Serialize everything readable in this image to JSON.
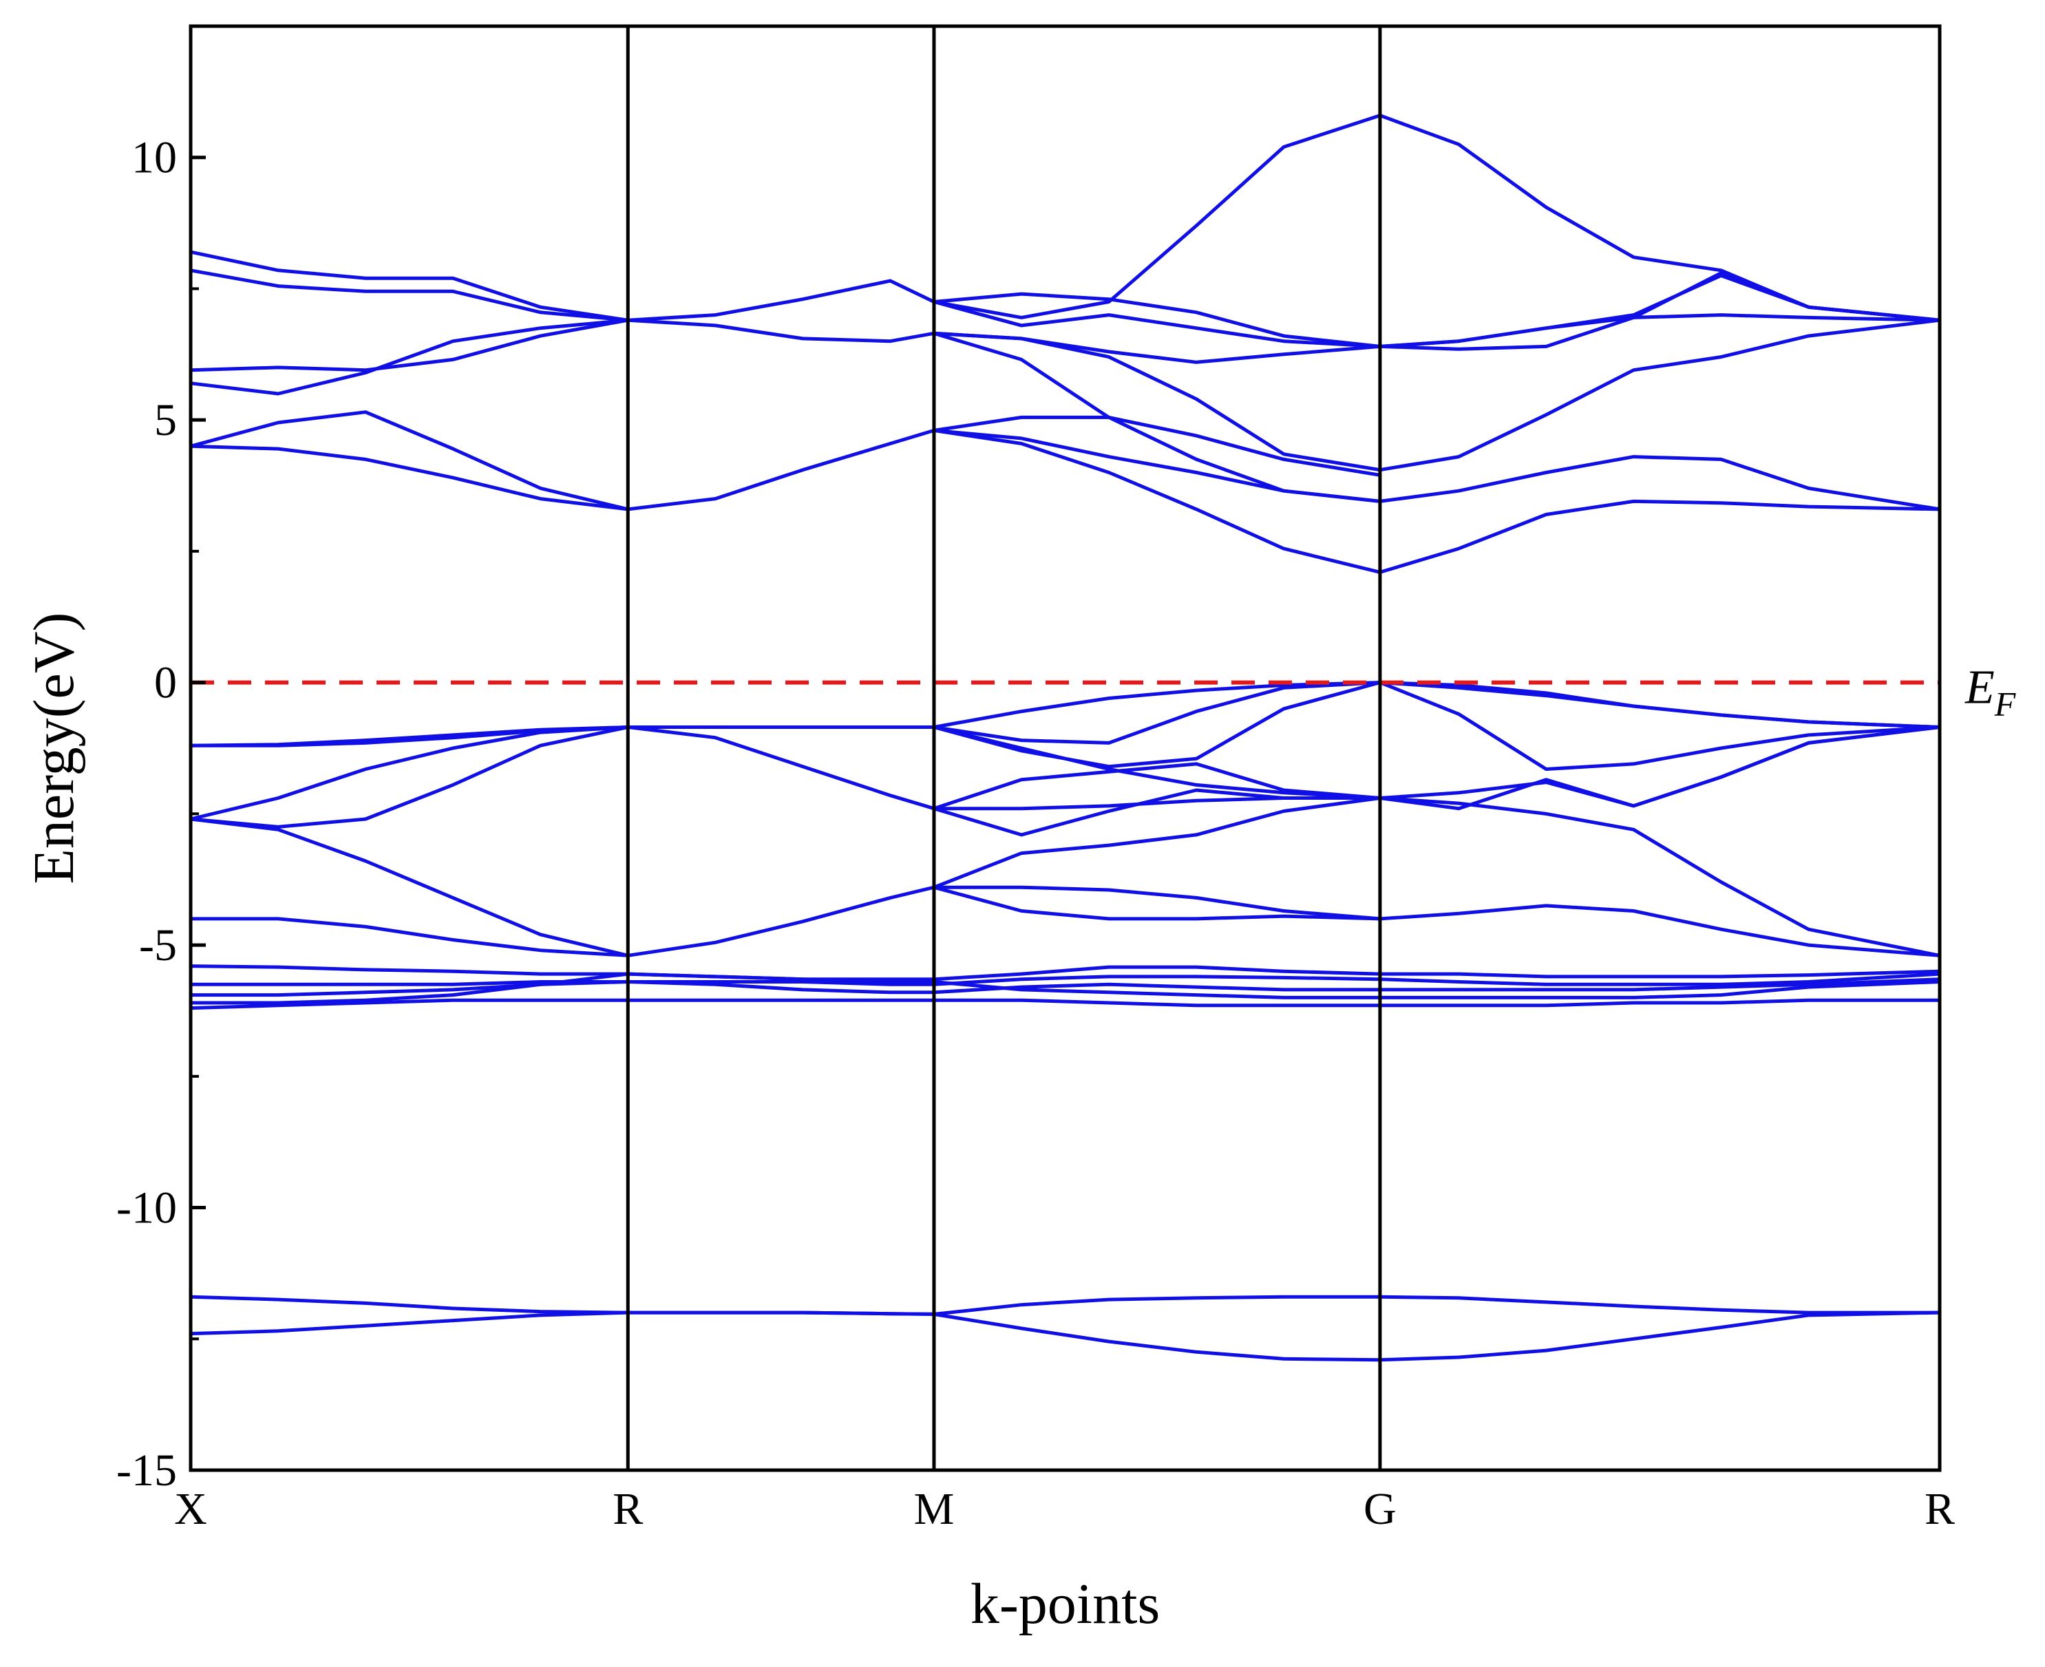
{
  "chart_data": {
    "type": "line",
    "title": "",
    "xlabel": "k-points",
    "ylabel": "Energy(eV)",
    "ylim": [
      -15,
      12.5
    ],
    "yticks": [
      10,
      5,
      0,
      -5,
      -10,
      -15
    ],
    "ytick_labels": [
      "10",
      "5",
      "0",
      "-5",
      "-10",
      "-15"
    ],
    "xlim": [
      0,
      20
    ],
    "kpoint_positions": [
      0,
      5,
      8.5,
      13.6,
      20
    ],
    "kpoint_labels": [
      "X",
      "R",
      "M",
      "G",
      "R"
    ],
    "fermi_level": {
      "value": 0,
      "label": "E",
      "subscript": "F",
      "color": "#e31a1c",
      "style": "dashed"
    },
    "band_color": "#1010e6",
    "grid": false,
    "bands": [
      {
        "x": [
          0,
          1,
          2,
          3,
          4,
          5,
          6,
          7,
          8,
          8.5
        ],
        "y": [
          -12.4,
          -12.35,
          -12.25,
          -12.15,
          -12.05,
          -12.0,
          -12.0,
          -12.0,
          -12.02,
          -12.03
        ]
      },
      {
        "x": [
          0,
          1,
          2,
          3,
          4,
          5,
          6,
          7,
          8,
          8.5
        ],
        "y": [
          -11.7,
          -11.75,
          -11.82,
          -11.92,
          -11.98,
          -12.0,
          -12.0,
          -12.0,
          -12.02,
          -12.03
        ]
      },
      {
        "x": [
          8.5,
          9.5,
          10.5,
          11.5,
          12.5,
          13.6,
          14.5,
          15.5,
          16.5,
          17.5,
          18.5,
          20
        ],
        "y": [
          -12.03,
          -11.85,
          -11.75,
          -11.72,
          -11.7,
          -11.7,
          -11.72,
          -11.8,
          -11.88,
          -11.95,
          -12.0,
          -12.0
        ]
      },
      {
        "x": [
          8.5,
          9.5,
          10.5,
          11.5,
          12.5,
          13.6,
          14.5,
          15.5,
          16.5,
          17.5,
          18.5,
          20
        ],
        "y": [
          -12.03,
          -12.3,
          -12.55,
          -12.75,
          -12.88,
          -12.9,
          -12.85,
          -12.72,
          -12.5,
          -12.28,
          -12.05,
          -12.0
        ]
      },
      {
        "x": [
          0,
          1,
          2,
          3,
          4,
          5,
          6,
          7,
          8,
          8.5,
          9.5,
          10.5,
          11.5,
          12.5,
          13.6,
          14.5,
          15.5,
          16.5,
          17.5,
          18.5,
          20
        ],
        "y": [
          -6.2,
          -6.15,
          -6.1,
          -6.05,
          -6.05,
          -6.05,
          -6.05,
          -6.05,
          -6.05,
          -6.05,
          -6.05,
          -6.1,
          -6.15,
          -6.15,
          -6.15,
          -6.15,
          -6.15,
          -6.1,
          -6.1,
          -6.05,
          -6.05
        ]
      },
      {
        "x": [
          0,
          1,
          2,
          3,
          4,
          5,
          6,
          7,
          8,
          8.5,
          9.5,
          10.5,
          11.5,
          12.5,
          13.6,
          14.5,
          15.5,
          16.5,
          17.5,
          18.5,
          20
        ],
        "y": [
          -6.1,
          -6.1,
          -6.05,
          -5.95,
          -5.75,
          -5.55,
          -5.6,
          -5.65,
          -5.7,
          -5.7,
          -5.85,
          -5.9,
          -5.95,
          -6.0,
          -6.0,
          -6.0,
          -6.0,
          -6.0,
          -5.95,
          -5.8,
          -5.7
        ]
      },
      {
        "x": [
          0,
          1,
          2,
          3,
          4,
          5,
          6,
          7,
          8,
          8.5,
          9.5,
          10.5,
          11.5,
          12.5,
          13.6,
          14.5,
          15.5,
          16.5,
          17.5,
          18.5,
          20
        ],
        "y": [
          -5.95,
          -5.95,
          -5.9,
          -5.85,
          -5.75,
          -5.7,
          -5.75,
          -5.85,
          -5.9,
          -5.9,
          -5.8,
          -5.75,
          -5.8,
          -5.85,
          -5.85,
          -5.85,
          -5.85,
          -5.85,
          -5.8,
          -5.75,
          -5.65
        ]
      },
      {
        "x": [
          0,
          1,
          2,
          3,
          4,
          5,
          6,
          7,
          8,
          8.5,
          9.5,
          10.5,
          11.5,
          12.5,
          13.6,
          14.5,
          15.5,
          16.5,
          17.5,
          18.5,
          20
        ],
        "y": [
          -5.75,
          -5.75,
          -5.75,
          -5.75,
          -5.7,
          -5.7,
          -5.7,
          -5.7,
          -5.75,
          -5.75,
          -5.65,
          -5.6,
          -5.6,
          -5.62,
          -5.65,
          -5.7,
          -5.75,
          -5.75,
          -5.75,
          -5.7,
          -5.55
        ]
      },
      {
        "x": [
          0,
          1,
          2,
          3,
          4,
          5,
          6,
          7,
          8,
          8.5,
          9.5,
          10.5,
          11.5,
          12.5,
          13.6,
          14.5,
          15.5,
          16.5,
          17.5,
          18.5,
          20
        ],
        "y": [
          -5.4,
          -5.42,
          -5.47,
          -5.5,
          -5.55,
          -5.55,
          -5.6,
          -5.65,
          -5.65,
          -5.65,
          -5.55,
          -5.42,
          -5.42,
          -5.5,
          -5.55,
          -5.55,
          -5.6,
          -5.6,
          -5.6,
          -5.57,
          -5.5
        ]
      },
      {
        "x": [
          0,
          1,
          2,
          3,
          4,
          5,
          6,
          7,
          8,
          8.5
        ],
        "y": [
          -4.5,
          -4.5,
          -4.65,
          -4.9,
          -5.1,
          -5.2,
          -4.95,
          -4.55,
          -4.1,
          -3.9
        ]
      },
      {
        "x": [
          0,
          1,
          2,
          3,
          4,
          5
        ],
        "y": [
          -2.6,
          -2.8,
          -3.4,
          -4.1,
          -4.8,
          -5.2
        ]
      },
      {
        "x": [
          0,
          1,
          2,
          3,
          4,
          5,
          6,
          7,
          8,
          8.5
        ],
        "y": [
          -2.6,
          -2.2,
          -1.65,
          -1.25,
          -0.95,
          -0.85,
          -1.05,
          -1.6,
          -2.15,
          -2.4
        ]
      },
      {
        "x": [
          0,
          1,
          2,
          3,
          4,
          5
        ],
        "y": [
          -2.6,
          -2.75,
          -2.6,
          -1.95,
          -1.2,
          -0.85
        ]
      },
      {
        "x": [
          0,
          1,
          2,
          3,
          4,
          5,
          6,
          7,
          8,
          8.5
        ],
        "y": [
          -1.2,
          -1.18,
          -1.1,
          -1.0,
          -0.9,
          -0.85,
          -0.85,
          -0.85,
          -0.85,
          -0.85
        ]
      },
      {
        "x": [
          0,
          1,
          2,
          3,
          4,
          5
        ],
        "y": [
          -1.2,
          -1.2,
          -1.15,
          -1.05,
          -0.92,
          -0.85
        ]
      },
      {
        "x": [
          8.5,
          9.5,
          10.5,
          11.5,
          12.5,
          13.6,
          14.5,
          15.5,
          16.5,
          17.5,
          18.5,
          20
        ],
        "y": [
          -0.85,
          -0.55,
          -0.3,
          -0.15,
          -0.05,
          0.0,
          -0.1,
          -0.25,
          -0.45,
          -0.62,
          -0.75,
          -0.85
        ]
      },
      {
        "x": [
          8.5,
          9.5,
          10.5,
          11.5,
          12.5,
          13.6,
          14.5,
          15.5,
          16.5,
          17.5,
          18.5,
          20
        ],
        "y": [
          -0.85,
          -1.1,
          -1.15,
          -0.55,
          -0.1,
          0.0,
          -0.05,
          -0.2,
          -0.45,
          -0.62,
          -0.75,
          -0.85
        ]
      },
      {
        "x": [
          8.5,
          9.5,
          10.5,
          11.5,
          12.5,
          13.6,
          14.5,
          15.5,
          16.5,
          17.5,
          18.5,
          20
        ],
        "y": [
          -0.85,
          -1.3,
          -1.6,
          -1.45,
          -0.5,
          0.0,
          -0.6,
          -1.65,
          -1.55,
          -1.25,
          -1.0,
          -0.85
        ]
      },
      {
        "x": [
          8.5,
          9.5,
          10.5,
          11.5,
          12.5,
          13.6,
          14.5,
          15.5,
          16.5,
          17.5,
          18.5,
          20
        ],
        "y": [
          -0.85,
          -1.25,
          -1.65,
          -1.95,
          -2.1,
          -2.2,
          -2.4,
          -1.85,
          -2.35,
          -1.8,
          -1.15,
          -0.85
        ]
      },
      {
        "x": [
          8.5,
          9.5,
          10.5,
          11.5,
          12.5,
          13.6,
          14.5,
          15.5,
          16.5,
          17.5,
          18.5,
          20
        ],
        "y": [
          -2.4,
          -1.85,
          -1.7,
          -1.55,
          -2.05,
          -2.2,
          -2.1,
          -1.9,
          -2.35,
          -1.8,
          -1.15,
          -0.85
        ]
      },
      {
        "x": [
          8.5,
          9.5,
          10.5,
          11.5,
          12.5,
          13.6
        ],
        "y": [
          -2.4,
          -2.9,
          -2.45,
          -2.05,
          -2.2,
          -2.2
        ]
      },
      {
        "x": [
          8.5,
          9.5,
          10.5,
          11.5,
          12.5,
          13.6
        ],
        "y": [
          -2.4,
          -2.4,
          -2.35,
          -2.25,
          -2.2,
          -2.2
        ]
      },
      {
        "x": [
          8.5,
          9.5,
          10.5,
          11.5,
          12.5,
          13.6,
          14.5,
          15.5,
          16.5,
          17.5,
          18.5,
          20
        ],
        "y": [
          -3.9,
          -3.25,
          -3.1,
          -2.9,
          -2.45,
          -2.2,
          -2.3,
          -2.5,
          -2.8,
          -3.8,
          -4.7,
          -5.2
        ]
      },
      {
        "x": [
          8.5,
          9.5,
          10.5,
          11.5,
          12.5,
          13.6,
          14.5,
          15.5,
          16.5,
          17.5,
          18.5,
          20
        ],
        "y": [
          -3.9,
          -3.9,
          -3.95,
          -4.1,
          -4.35,
          -4.5,
          -4.4,
          -4.25,
          -4.35,
          -4.7,
          -5.0,
          -5.2
        ]
      },
      {
        "x": [
          8.5,
          9.5,
          10.5,
          11.5,
          12.5,
          13.6
        ],
        "y": [
          -3.9,
          -4.35,
          -4.5,
          -4.5,
          -4.45,
          -4.5
        ]
      },
      {
        "x": [
          0,
          1,
          2,
          3,
          4,
          5
        ],
        "y": [
          4.5,
          4.45,
          4.25,
          3.9,
          3.5,
          3.3
        ]
      },
      {
        "x": [
          0,
          1,
          2,
          3,
          4,
          5,
          6,
          7,
          8,
          8.5
        ],
        "y": [
          4.5,
          4.95,
          5.15,
          4.45,
          3.7,
          3.3,
          3.5,
          4.05,
          4.55,
          4.8
        ]
      },
      {
        "x": [
          0,
          1,
          2,
          3,
          4,
          5
        ],
        "y": [
          5.7,
          5.5,
          5.9,
          6.5,
          6.75,
          6.9
        ]
      },
      {
        "x": [
          0,
          1,
          2,
          3,
          4,
          5
        ],
        "y": [
          5.95,
          6.0,
          5.95,
          6.15,
          6.6,
          6.9
        ]
      },
      {
        "x": [
          0,
          1,
          2,
          3,
          4,
          5
        ],
        "y": [
          7.85,
          7.55,
          7.45,
          7.45,
          7.05,
          6.9
        ]
      },
      {
        "x": [
          0,
          1,
          2,
          3,
          4,
          5
        ],
        "y": [
          8.2,
          7.85,
          7.7,
          7.7,
          7.15,
          6.9
        ]
      },
      {
        "x": [
          5,
          6,
          7,
          8,
          8.5
        ],
        "y": [
          6.9,
          7.0,
          7.3,
          7.65,
          7.25
        ]
      },
      {
        "x": [
          5,
          6,
          7,
          8,
          8.5
        ],
        "y": [
          6.9,
          6.8,
          6.55,
          6.5,
          6.65
        ]
      },
      {
        "x": [
          8.5,
          9.5,
          10.5,
          11.5,
          12.5,
          13.6,
          14.5,
          15.5,
          16.5,
          17.5,
          18.5,
          20
        ],
        "y": [
          4.8,
          4.55,
          4.0,
          3.3,
          2.55,
          2.1,
          2.55,
          3.2,
          3.45,
          3.42,
          3.35,
          3.3
        ]
      },
      {
        "x": [
          8.5,
          9.5,
          10.5,
          11.5,
          12.5,
          13.6,
          14.5,
          15.5,
          16.5,
          17.5,
          18.5,
          20
        ],
        "y": [
          4.8,
          4.65,
          4.3,
          4.0,
          3.65,
          3.45,
          3.65,
          4.0,
          4.3,
          4.25,
          3.7,
          3.3
        ]
      },
      {
        "x": [
          8.5,
          9.5,
          10.5,
          11.5,
          12.5,
          13.6
        ],
        "y": [
          4.8,
          5.05,
          5.05,
          4.7,
          4.25,
          3.95
        ]
      },
      {
        "x": [
          8.5,
          9.5,
          10.5,
          11.5,
          12.5,
          13.6
        ],
        "y": [
          6.65,
          6.15,
          5.05,
          4.25,
          3.65,
          3.45
        ]
      },
      {
        "x": [
          8.5,
          9.5,
          10.5,
          11.5,
          12.5,
          13.6,
          14.5,
          15.5,
          16.5,
          17.5,
          18.5,
          20
        ],
        "y": [
          6.65,
          6.55,
          6.2,
          5.4,
          4.35,
          4.05,
          4.3,
          5.1,
          5.95,
          6.2,
          6.6,
          6.9
        ]
      },
      {
        "x": [
          8.5,
          9.5,
          10.5,
          11.5,
          12.5,
          13.6,
          14.5,
          15.5,
          16.5,
          17.5,
          18.5,
          20
        ],
        "y": [
          6.65,
          6.55,
          6.3,
          6.1,
          6.25,
          6.4,
          6.5,
          6.75,
          6.95,
          7.0,
          6.95,
          6.9
        ]
      },
      {
        "x": [
          8.5,
          9.5,
          10.5,
          11.5,
          12.5,
          13.6,
          14.5,
          15.5,
          16.5,
          17.5,
          18.5,
          20
        ],
        "y": [
          7.25,
          6.8,
          7.0,
          6.75,
          6.5,
          6.4,
          6.35,
          6.4,
          6.95,
          7.8,
          7.15,
          6.9
        ]
      },
      {
        "x": [
          8.5,
          9.5,
          10.5,
          11.5,
          12.5,
          13.6,
          14.5,
          15.5,
          16.5,
          17.5,
          18.5,
          20
        ],
        "y": [
          7.25,
          7.4,
          7.3,
          7.05,
          6.6,
          6.4,
          6.5,
          6.75,
          7.0,
          7.75,
          7.15,
          6.9
        ]
      },
      {
        "x": [
          8.5,
          9.5,
          10.5,
          11.5,
          12.5,
          13.6,
          14.5,
          15.5,
          16.5,
          17.5,
          18.5,
          20
        ],
        "y": [
          7.25,
          6.95,
          7.25,
          8.7,
          10.2,
          10.8,
          10.25,
          9.05,
          8.1,
          7.85,
          7.15,
          6.9
        ]
      }
    ]
  }
}
